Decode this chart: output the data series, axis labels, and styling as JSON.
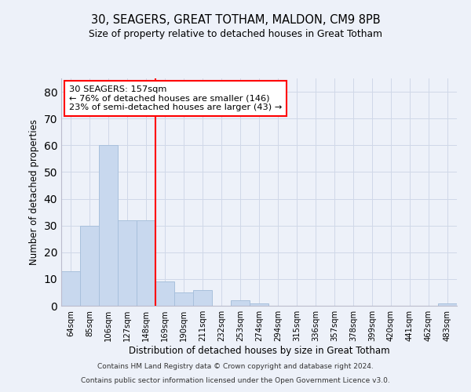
{
  "title": "30, SEAGERS, GREAT TOTHAM, MALDON, CM9 8PB",
  "subtitle": "Size of property relative to detached houses in Great Totham",
  "xlabel": "Distribution of detached houses by size in Great Totham",
  "ylabel": "Number of detached properties",
  "bar_color": "#c8d8ee",
  "bar_edgecolor": "#a8c0dc",
  "categories": [
    "64sqm",
    "85sqm",
    "106sqm",
    "127sqm",
    "148sqm",
    "169sqm",
    "190sqm",
    "211sqm",
    "232sqm",
    "253sqm",
    "274sqm",
    "294sqm",
    "315sqm",
    "336sqm",
    "357sqm",
    "378sqm",
    "399sqm",
    "420sqm",
    "441sqm",
    "462sqm",
    "483sqm"
  ],
  "values": [
    13,
    30,
    60,
    32,
    32,
    9,
    5,
    6,
    0,
    2,
    1,
    0,
    0,
    0,
    0,
    0,
    0,
    0,
    0,
    0,
    1
  ],
  "ylim": [
    0,
    85
  ],
  "yticks": [
    0,
    10,
    20,
    30,
    40,
    50,
    60,
    70,
    80
  ],
  "grid_color": "#d0d8e8",
  "annotation_line1": "30 SEAGERS: 157sqm",
  "annotation_line2": "← 76% of detached houses are smaller (146)",
  "annotation_line3": "23% of semi-detached houses are larger (43) →",
  "annotation_box_color": "white",
  "annotation_box_edgecolor": "red",
  "marker_line_color": "red",
  "background_color": "#edf1f9",
  "footer_line1": "Contains HM Land Registry data © Crown copyright and database right 2024.",
  "footer_line2": "Contains public sector information licensed under the Open Government Licence v3.0."
}
